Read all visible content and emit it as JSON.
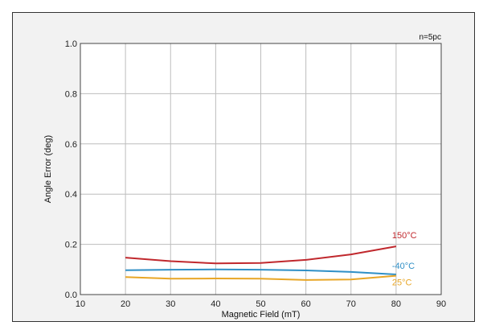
{
  "chart_data": {
    "type": "line",
    "title": "",
    "note": "n=5pc",
    "xlabel": "Magnetic Field (mT)",
    "ylabel": "Angle Error (deg)",
    "xlim": [
      10,
      90
    ],
    "ylim": [
      0.0,
      1.0
    ],
    "xticks": [
      "10",
      "20",
      "30",
      "40",
      "50",
      "60",
      "70",
      "80",
      "90"
    ],
    "yticks": [
      "0.0",
      "0.2",
      "0.4",
      "0.6",
      "0.8",
      "1.0"
    ],
    "grid": true,
    "x": [
      20,
      30,
      40,
      50,
      60,
      70,
      80
    ],
    "series": [
      {
        "name": "150°C",
        "color": "#c0282d",
        "values": [
          0.147,
          0.133,
          0.124,
          0.126,
          0.138,
          0.16,
          0.192
        ]
      },
      {
        "name": "-40°C",
        "color": "#2f8fc6",
        "values": [
          0.097,
          0.099,
          0.1,
          0.099,
          0.096,
          0.09,
          0.08
        ]
      },
      {
        "name": "25°C",
        "color": "#e8a626",
        "values": [
          0.07,
          0.063,
          0.064,
          0.063,
          0.058,
          0.06,
          0.075
        ]
      }
    ]
  }
}
